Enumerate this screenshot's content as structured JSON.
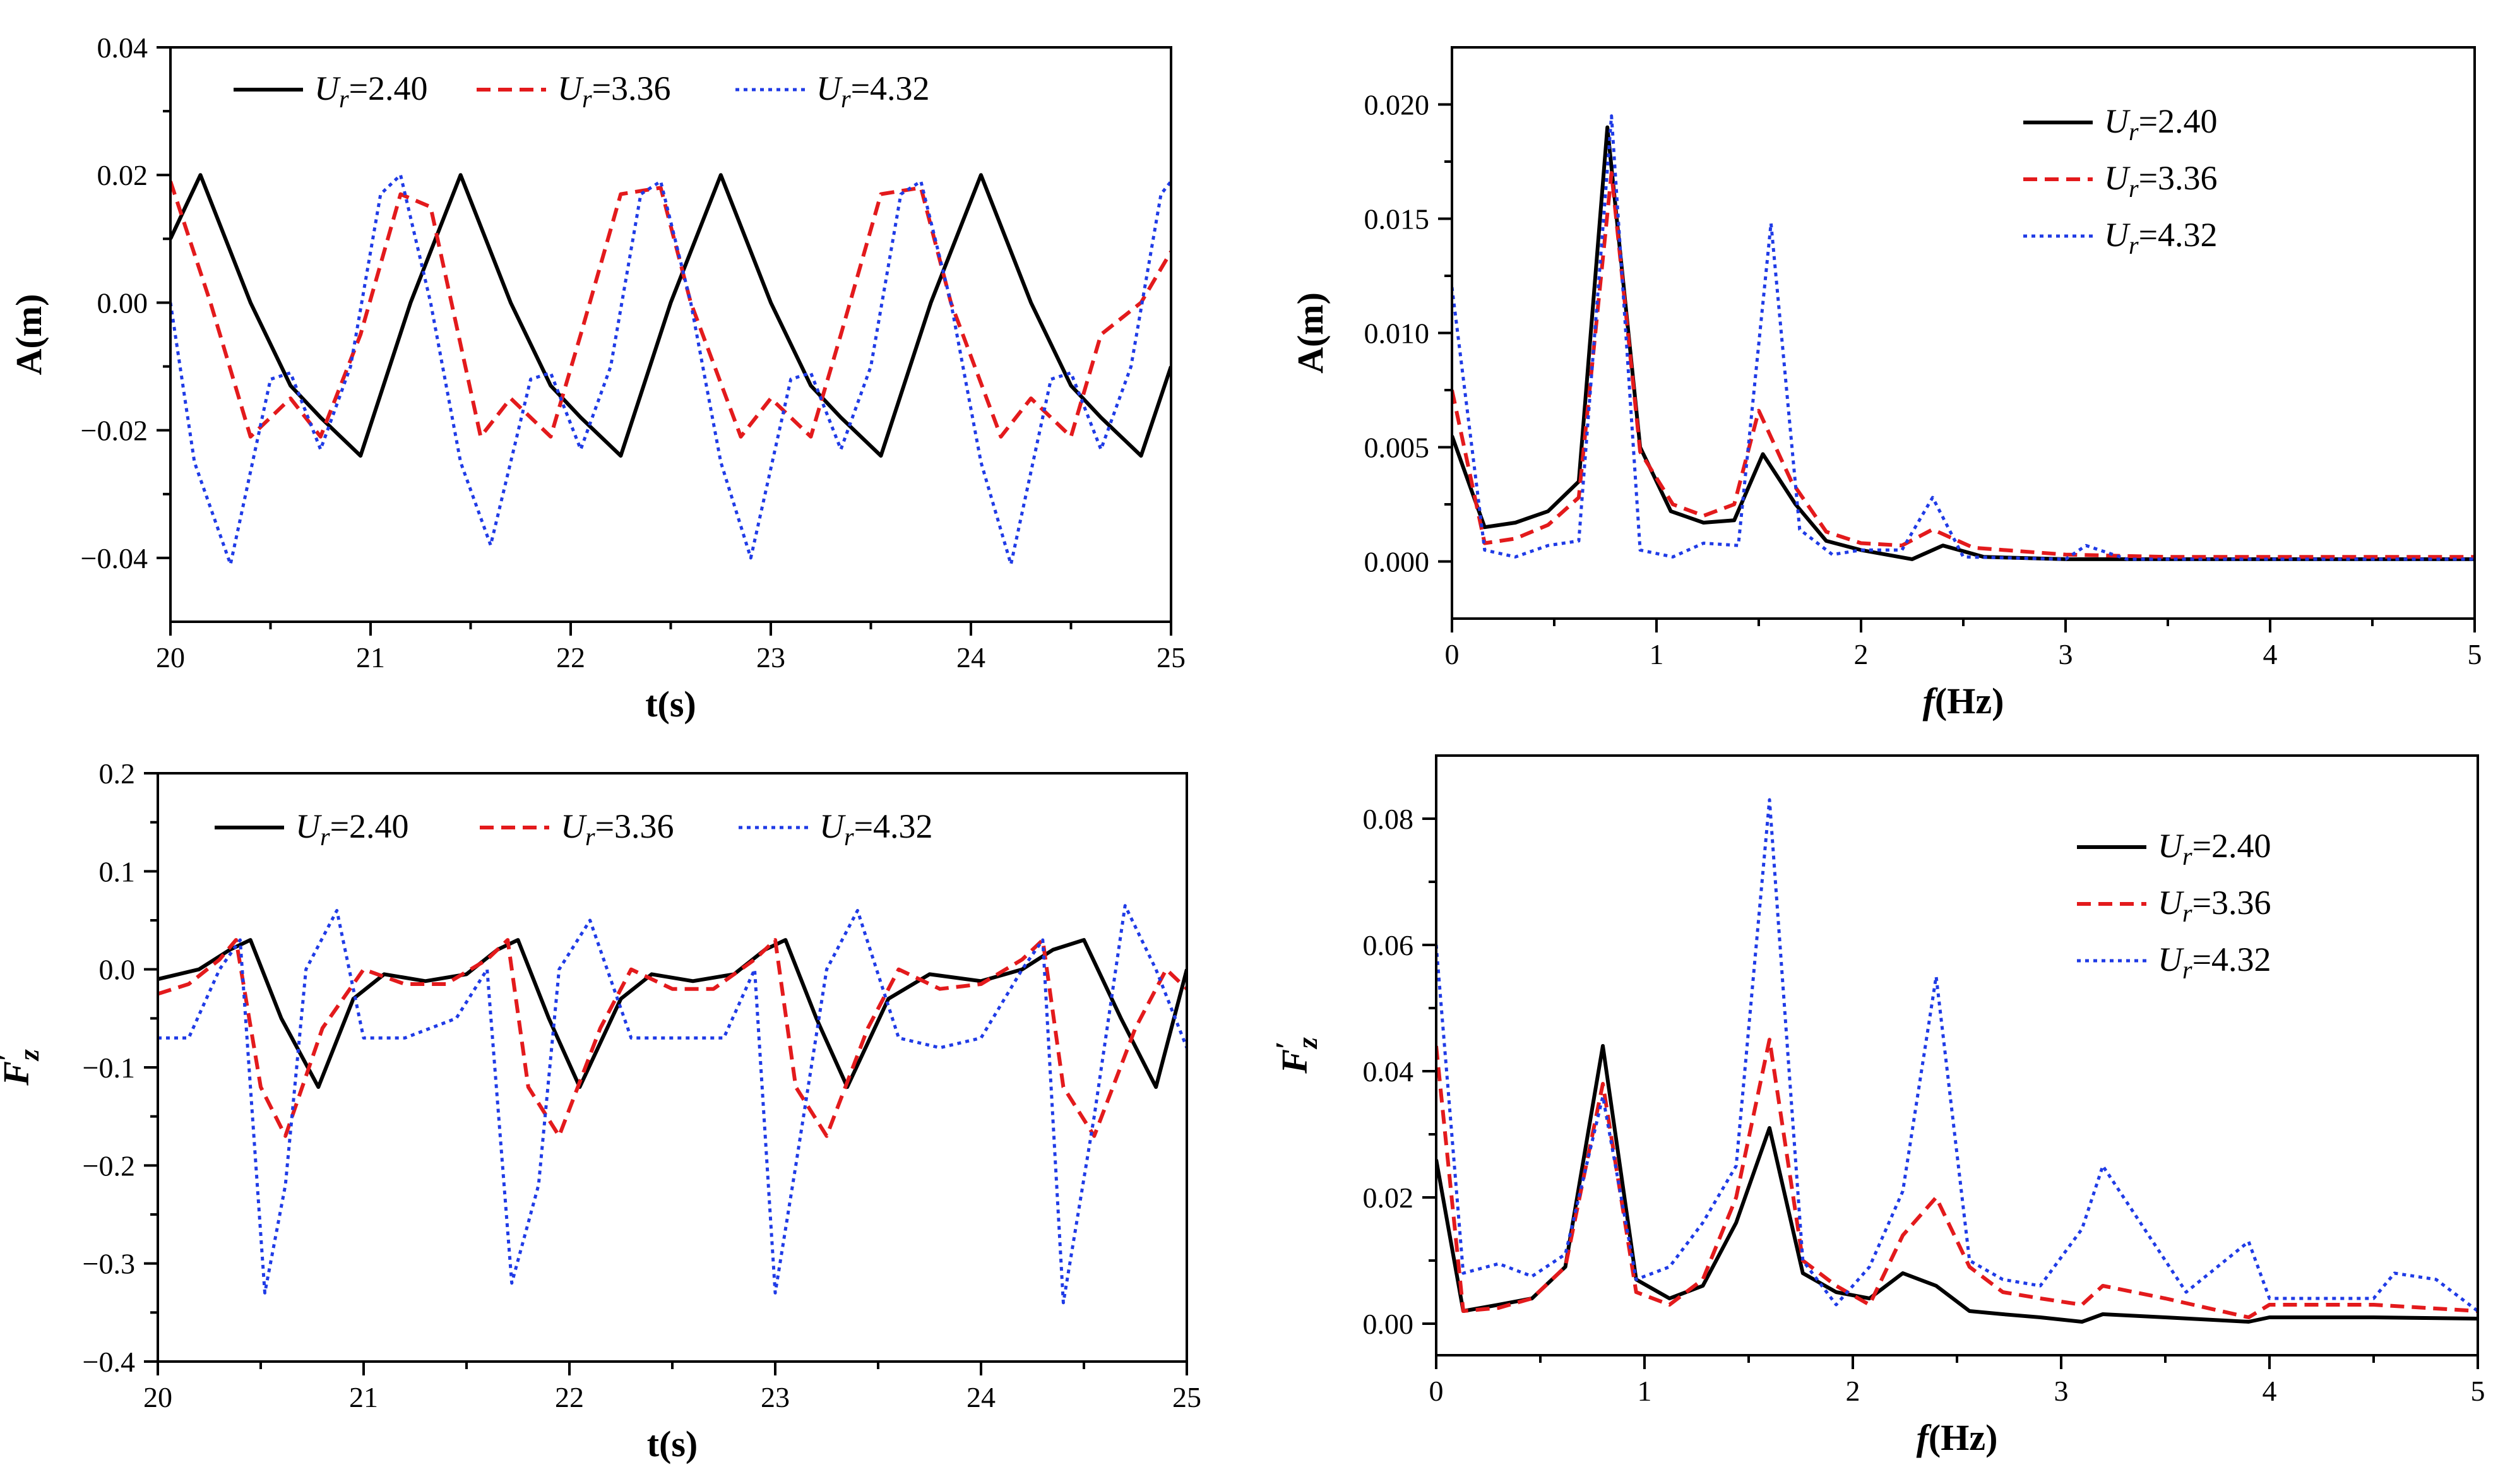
{
  "chart_data": [
    {
      "id": "amp-time",
      "type": "line",
      "xlabel": "t(s)",
      "ylabel": "A(m)",
      "xlim": [
        20,
        25
      ],
      "ylim": [
        -0.05,
        0.04
      ],
      "xticks": [
        20,
        21,
        22,
        23,
        24,
        25
      ],
      "xtick_labels": [
        "20",
        "21",
        "22",
        "23",
        "24",
        "25"
      ],
      "yticks": [
        -0.04,
        -0.02,
        0.0,
        0.02,
        0.04
      ],
      "ytick_labels": [
        "−0.04",
        "−0.02",
        "0.00",
        "0.02",
        "0.04"
      ],
      "legend_position": "top",
      "series": [
        {
          "name": "Ur=2.40",
          "sub_label": "r",
          "base_label": "U",
          "value_label": "=2.40",
          "color": "#000000",
          "dash": "solid",
          "x": [
            20.0,
            20.15,
            20.4,
            20.6,
            20.75,
            20.95,
            21.2,
            21.45,
            21.7,
            21.9,
            22.05,
            22.25,
            22.5,
            22.75,
            23.0,
            23.2,
            23.35,
            23.55,
            23.8,
            24.05,
            24.3,
            24.5,
            24.65,
            24.85,
            25.0
          ],
          "y": [
            0.01,
            0.02,
            0.0,
            -0.013,
            -0.018,
            -0.024,
            0.0,
            0.02,
            0.0,
            -0.013,
            -0.018,
            -0.024,
            0.0,
            0.02,
            0.0,
            -0.013,
            -0.018,
            -0.024,
            0.0,
            0.02,
            0.0,
            -0.013,
            -0.018,
            -0.024,
            -0.01
          ]
        },
        {
          "name": "Ur=3.36",
          "sub_label": "r",
          "base_label": "U",
          "value_label": "=3.36",
          "color": "#e31a1c",
          "dash": "dashed",
          "x": [
            20.0,
            20.2,
            20.4,
            20.6,
            20.75,
            20.95,
            21.15,
            21.3,
            21.55,
            21.7,
            21.9,
            22.05,
            22.25,
            22.45,
            22.6,
            22.85,
            23.0,
            23.2,
            23.35,
            23.55,
            23.75,
            23.9,
            24.15,
            24.3,
            24.5,
            24.65,
            24.85,
            25.0
          ],
          "y": [
            0.019,
            0.0,
            -0.021,
            -0.015,
            -0.021,
            -0.005,
            0.017,
            0.015,
            -0.021,
            -0.015,
            -0.021,
            -0.005,
            0.017,
            0.018,
            0.0,
            -0.021,
            -0.015,
            -0.021,
            -0.005,
            0.017,
            0.018,
            0.0,
            -0.021,
            -0.015,
            -0.021,
            -0.005,
            0.0,
            0.008
          ]
        },
        {
          "name": "Ur=4.32",
          "sub_label": "r",
          "base_label": "U",
          "value_label": "=4.32",
          "color": "#1f3be6",
          "dash": "dotted",
          "x": [
            20.0,
            20.12,
            20.3,
            20.5,
            20.6,
            20.75,
            20.9,
            21.05,
            21.15,
            21.3,
            21.45,
            21.6,
            21.8,
            21.9,
            22.05,
            22.2,
            22.35,
            22.45,
            22.6,
            22.75,
            22.9,
            23.1,
            23.2,
            23.35,
            23.5,
            23.65,
            23.75,
            23.9,
            24.05,
            24.2,
            24.4,
            24.5,
            24.65,
            24.8,
            24.95,
            25.0
          ],
          "y": [
            0.0,
            -0.025,
            -0.041,
            -0.012,
            -0.011,
            -0.023,
            -0.01,
            0.017,
            0.02,
            0.0,
            -0.025,
            -0.038,
            -0.012,
            -0.011,
            -0.023,
            -0.01,
            0.017,
            0.019,
            0.0,
            -0.025,
            -0.04,
            -0.012,
            -0.011,
            -0.023,
            -0.01,
            0.017,
            0.019,
            0.0,
            -0.025,
            -0.041,
            -0.012,
            -0.011,
            -0.023,
            -0.01,
            0.017,
            0.019
          ]
        }
      ]
    },
    {
      "id": "amp-spectrum",
      "type": "line",
      "xlabel": "f(Hz)",
      "xlabel_italic": "f",
      "xlabel_rest": "(Hz)",
      "ylabel": "A(m)",
      "xlim": [
        0,
        5
      ],
      "ylim": [
        -0.0025,
        0.0225
      ],
      "xticks": [
        0,
        1,
        2,
        3,
        4,
        5
      ],
      "xtick_labels": [
        "0",
        "1",
        "2",
        "3",
        "4",
        "5"
      ],
      "yticks": [
        0.0,
        0.005,
        0.01,
        0.015,
        0.02
      ],
      "ytick_labels": [
        "0.000",
        "0.005",
        "0.010",
        "0.015",
        "0.020"
      ],
      "legend_position": "top-right",
      "series": [
        {
          "name": "Ur=2.40",
          "sub_label": "r",
          "base_label": "U",
          "value_label": "=2.40",
          "color": "#000000",
          "dash": "solid",
          "x": [
            0.0,
            0.16,
            0.31,
            0.47,
            0.62,
            0.76,
            0.92,
            1.07,
            1.23,
            1.38,
            1.52,
            1.68,
            1.83,
            2.0,
            2.25,
            2.4,
            2.6,
            3.0,
            3.5,
            4.0,
            5.0
          ],
          "y": [
            0.0055,
            0.0015,
            0.0017,
            0.0022,
            0.0035,
            0.019,
            0.005,
            0.0022,
            0.0017,
            0.0018,
            0.0047,
            0.0025,
            0.0009,
            0.0005,
            0.0001,
            0.0007,
            0.0002,
            0.0001,
            0.0001,
            0.0001,
            0.0001
          ]
        },
        {
          "name": "Ur=3.36",
          "sub_label": "r",
          "base_label": "U",
          "value_label": "=3.36",
          "color": "#e31a1c",
          "dash": "dashed",
          "x": [
            0.0,
            0.16,
            0.31,
            0.47,
            0.62,
            0.78,
            0.92,
            1.08,
            1.23,
            1.38,
            1.5,
            1.66,
            1.83,
            2.0,
            2.2,
            2.35,
            2.55,
            3.0,
            3.5,
            4.0,
            5.0
          ],
          "y": [
            0.0075,
            0.0008,
            0.001,
            0.0016,
            0.0028,
            0.017,
            0.0048,
            0.0025,
            0.002,
            0.0025,
            0.0066,
            0.0035,
            0.0013,
            0.0008,
            0.0007,
            0.0014,
            0.0006,
            0.0003,
            0.0002,
            0.0002,
            0.0002
          ]
        },
        {
          "name": "Ur=4.32",
          "sub_label": "r",
          "base_label": "U",
          "value_label": "=4.32",
          "color": "#1f3be6",
          "dash": "dotted",
          "x": [
            0.0,
            0.16,
            0.31,
            0.47,
            0.62,
            0.78,
            0.92,
            1.08,
            1.23,
            1.4,
            1.56,
            1.7,
            1.86,
            2.0,
            2.2,
            2.35,
            2.5,
            3.0,
            3.1,
            3.3,
            4.0,
            5.0
          ],
          "y": [
            0.012,
            0.0005,
            0.0002,
            0.0007,
            0.0009,
            0.0195,
            0.0005,
            0.0002,
            0.0008,
            0.0007,
            0.0148,
            0.0014,
            0.0003,
            0.0005,
            0.0005,
            0.0028,
            0.0002,
            0.0001,
            0.0007,
            0.0001,
            0.0001,
            0.0001
          ]
        }
      ]
    },
    {
      "id": "force-time",
      "type": "line",
      "xlabel": "t(s)",
      "ylabel": "F′z",
      "ylabel_base": "F",
      "ylabel_prime": "′",
      "ylabel_sub": "z",
      "xlim": [
        20,
        25
      ],
      "ylim": [
        -0.4,
        0.2
      ],
      "xticks": [
        20,
        21,
        22,
        23,
        24,
        25
      ],
      "xtick_labels": [
        "20",
        "21",
        "22",
        "23",
        "24",
        "25"
      ],
      "yticks": [
        -0.4,
        -0.3,
        -0.2,
        -0.1,
        0.0,
        0.1,
        0.2
      ],
      "ytick_labels": [
        "−0.4",
        "−0.3",
        "−0.2",
        "−0.1",
        "0.0",
        "0.1",
        "0.2"
      ],
      "legend_position": "top",
      "series": [
        {
          "name": "Ur=2.40",
          "sub_label": "r",
          "base_label": "U",
          "value_label": "=2.40",
          "color": "#000000",
          "dash": "solid",
          "x": [
            20.0,
            20.2,
            20.35,
            20.45,
            20.6,
            20.78,
            20.95,
            21.1,
            21.3,
            21.5,
            21.65,
            21.75,
            21.9,
            22.05,
            22.25,
            22.4,
            22.6,
            22.8,
            22.95,
            23.05,
            23.2,
            23.35,
            23.55,
            23.75,
            24.0,
            24.2,
            24.35,
            24.5,
            24.68,
            24.85,
            25.0
          ],
          "y": [
            -0.01,
            0.0,
            0.02,
            0.03,
            -0.05,
            -0.12,
            -0.03,
            -0.005,
            -0.012,
            -0.005,
            0.02,
            0.03,
            -0.05,
            -0.12,
            -0.03,
            -0.005,
            -0.012,
            -0.005,
            0.02,
            0.03,
            -0.05,
            -0.12,
            -0.03,
            -0.005,
            -0.012,
            0.0,
            0.02,
            0.03,
            -0.05,
            -0.12,
            0.0
          ]
        },
        {
          "name": "Ur=3.36",
          "sub_label": "r",
          "base_label": "U",
          "value_label": "=3.36",
          "color": "#e31a1c",
          "dash": "dashed",
          "x": [
            20.0,
            20.15,
            20.3,
            20.38,
            20.5,
            20.62,
            20.8,
            21.0,
            21.2,
            21.4,
            21.6,
            21.7,
            21.8,
            21.95,
            22.15,
            22.3,
            22.5,
            22.7,
            22.9,
            23.0,
            23.1,
            23.25,
            23.45,
            23.6,
            23.8,
            24.0,
            24.2,
            24.3,
            24.4,
            24.55,
            24.75,
            24.9,
            25.0
          ],
          "y": [
            -0.025,
            -0.015,
            0.01,
            0.03,
            -0.12,
            -0.17,
            -0.06,
            0.0,
            -0.015,
            -0.015,
            0.01,
            0.03,
            -0.12,
            -0.17,
            -0.06,
            0.0,
            -0.02,
            -0.02,
            0.01,
            0.03,
            -0.12,
            -0.17,
            -0.06,
            0.0,
            -0.02,
            -0.015,
            0.01,
            0.03,
            -0.12,
            -0.17,
            -0.06,
            0.0,
            -0.02
          ]
        },
        {
          "name": "Ur=4.32",
          "sub_label": "r",
          "base_label": "U",
          "value_label": "=4.32",
          "color": "#1f3be6",
          "dash": "dotted",
          "x": [
            20.0,
            20.15,
            20.3,
            20.4,
            20.52,
            20.62,
            20.72,
            20.87,
            21.0,
            21.2,
            21.45,
            21.6,
            21.72,
            21.85,
            21.95,
            22.1,
            22.3,
            22.5,
            22.75,
            22.9,
            23.0,
            23.1,
            23.25,
            23.4,
            23.6,
            23.8,
            24.0,
            24.2,
            24.3,
            24.4,
            24.55,
            24.7,
            24.85,
            25.0
          ],
          "y": [
            -0.07,
            -0.07,
            0.0,
            0.03,
            -0.33,
            -0.22,
            0.0,
            0.06,
            -0.07,
            -0.07,
            -0.05,
            0.0,
            -0.32,
            -0.22,
            0.0,
            0.05,
            -0.07,
            -0.07,
            -0.07,
            0.0,
            -0.33,
            -0.2,
            0.0,
            0.06,
            -0.07,
            -0.08,
            -0.07,
            0.0,
            0.03,
            -0.34,
            -0.15,
            0.065,
            0.0,
            -0.08
          ]
        }
      ]
    },
    {
      "id": "force-spectrum",
      "type": "line",
      "xlabel": "f(Hz)",
      "xlabel_italic": "f",
      "xlabel_rest": "(Hz)",
      "ylabel": "F′z",
      "ylabel_base": "F",
      "ylabel_prime": "′",
      "ylabel_sub": "z",
      "xlim": [
        0,
        5
      ],
      "ylim": [
        -0.005,
        0.09
      ],
      "xticks": [
        0,
        1,
        2,
        3,
        4,
        5
      ],
      "xtick_labels": [
        "0",
        "1",
        "2",
        "3",
        "4",
        "5"
      ],
      "yticks": [
        0.0,
        0.02,
        0.04,
        0.06,
        0.08
      ],
      "ytick_labels": [
        "0.00",
        "0.02",
        "0.04",
        "0.06",
        "0.08"
      ],
      "legend_position": "top-right",
      "series": [
        {
          "name": "Ur=2.40",
          "sub_label": "r",
          "base_label": "U",
          "value_label": "=2.40",
          "color": "#000000",
          "dash": "solid",
          "x": [
            0.0,
            0.13,
            0.3,
            0.46,
            0.62,
            0.8,
            0.96,
            1.12,
            1.28,
            1.44,
            1.6,
            1.76,
            1.92,
            2.08,
            2.24,
            2.4,
            2.56,
            2.72,
            2.9,
            3.1,
            3.2,
            3.5,
            3.9,
            4.0,
            4.5,
            5.0
          ],
          "y": [
            0.026,
            0.002,
            0.003,
            0.004,
            0.009,
            0.044,
            0.007,
            0.004,
            0.006,
            0.016,
            0.031,
            0.008,
            0.005,
            0.004,
            0.008,
            0.006,
            0.002,
            0.0015,
            0.001,
            0.0003,
            0.0015,
            0.001,
            0.0003,
            0.001,
            0.001,
            0.0008
          ]
        },
        {
          "name": "Ur=3.36",
          "sub_label": "r",
          "base_label": "U",
          "value_label": "=3.36",
          "color": "#e31a1c",
          "dash": "dashed",
          "x": [
            0.0,
            0.13,
            0.3,
            0.46,
            0.62,
            0.8,
            0.96,
            1.12,
            1.28,
            1.44,
            1.6,
            1.76,
            1.92,
            2.08,
            2.24,
            2.4,
            2.56,
            2.72,
            2.9,
            3.1,
            3.2,
            3.5,
            3.9,
            4.0,
            4.5,
            5.0
          ],
          "y": [
            0.044,
            0.002,
            0.0025,
            0.004,
            0.009,
            0.038,
            0.005,
            0.003,
            0.007,
            0.02,
            0.045,
            0.01,
            0.006,
            0.003,
            0.014,
            0.02,
            0.009,
            0.005,
            0.004,
            0.003,
            0.006,
            0.004,
            0.001,
            0.003,
            0.003,
            0.002
          ]
        },
        {
          "name": "Ur=4.32",
          "sub_label": "r",
          "base_label": "U",
          "value_label": "=4.32",
          "color": "#1f3be6",
          "dash": "dotted",
          "x": [
            0.0,
            0.13,
            0.3,
            0.46,
            0.62,
            0.8,
            0.96,
            1.12,
            1.28,
            1.44,
            1.6,
            1.76,
            1.92,
            2.08,
            2.24,
            2.4,
            2.56,
            2.72,
            2.9,
            3.1,
            3.2,
            3.6,
            3.9,
            4.0,
            4.5,
            4.6,
            4.8,
            5.0
          ],
          "y": [
            0.06,
            0.008,
            0.0095,
            0.0075,
            0.011,
            0.036,
            0.007,
            0.009,
            0.016,
            0.025,
            0.083,
            0.01,
            0.003,
            0.009,
            0.021,
            0.055,
            0.01,
            0.007,
            0.006,
            0.015,
            0.025,
            0.005,
            0.013,
            0.004,
            0.004,
            0.008,
            0.007,
            0.002
          ]
        }
      ]
    }
  ]
}
